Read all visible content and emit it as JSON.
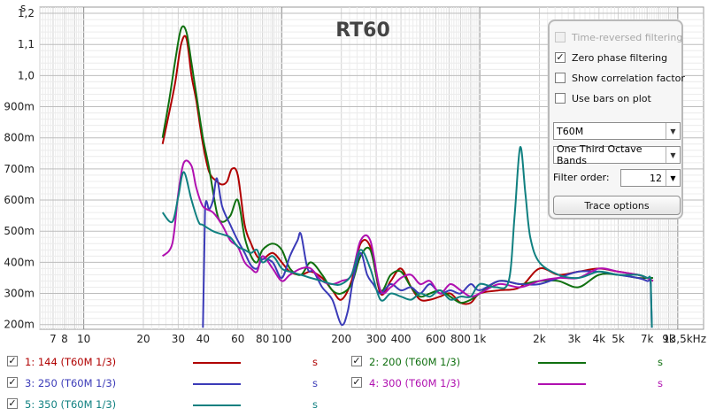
{
  "chart_data": {
    "type": "line",
    "title": "RT60",
    "ylabel": "s",
    "xlabel": "",
    "x_scale": "log",
    "xlim": [
      6,
      13500
    ],
    "ylim": [
      0.185,
      1.22
    ],
    "y_ticks": [
      {
        "v": 1.2,
        "label": "1,2"
      },
      {
        "v": 1.1,
        "label": "1,1"
      },
      {
        "v": 1.0,
        "label": "1,0"
      },
      {
        "v": 0.9,
        "label": "900m"
      },
      {
        "v": 0.8,
        "label": "800m"
      },
      {
        "v": 0.7,
        "label": "700m"
      },
      {
        "v": 0.6,
        "label": "600m"
      },
      {
        "v": 0.5,
        "label": "500m"
      },
      {
        "v": 0.4,
        "label": "400m"
      },
      {
        "v": 0.3,
        "label": "300m"
      },
      {
        "v": 0.2,
        "label": "200m"
      }
    ],
    "x_ticks": [
      {
        "v": 7,
        "label": "7"
      },
      {
        "v": 8,
        "label": "8"
      },
      {
        "v": 10,
        "label": "10"
      },
      {
        "v": 20,
        "label": "20"
      },
      {
        "v": 30,
        "label": "30"
      },
      {
        "v": 40,
        "label": "40"
      },
      {
        "v": 60,
        "label": "60"
      },
      {
        "v": 80,
        "label": "80"
      },
      {
        "v": 100,
        "label": "100"
      },
      {
        "v": 200,
        "label": "200"
      },
      {
        "v": 300,
        "label": "300"
      },
      {
        "v": 400,
        "label": "400"
      },
      {
        "v": 600,
        "label": "600"
      },
      {
        "v": 800,
        "label": "800"
      },
      {
        "v": 1000,
        "label": "1k"
      },
      {
        "v": 2000,
        "label": "2k"
      },
      {
        "v": 3000,
        "label": "3k"
      },
      {
        "v": 4000,
        "label": "4k"
      },
      {
        "v": 5000,
        "label": "5k"
      },
      {
        "v": 7000,
        "label": "7k"
      },
      {
        "v": 9000,
        "label": "9k"
      },
      {
        "v": 13500,
        "label": "13,5kHz"
      }
    ],
    "series": [
      {
        "name": "1: 144 (T60M 1/3)",
        "color": "#b00000",
        "x": [
          25,
          27,
          29,
          31,
          33,
          35,
          37,
          40,
          43,
          47,
          50,
          53,
          56,
          60,
          65,
          70,
          75,
          80,
          90,
          100,
          110,
          125,
          140,
          160,
          180,
          200,
          225,
          250,
          280,
          315,
          355,
          400,
          450,
          500,
          560,
          630,
          710,
          800,
          900,
          1000,
          1250,
          1600,
          2000,
          2500,
          3150,
          4000,
          5000,
          6300,
          7000,
          7500
        ],
        "y": [
          0.78,
          0.88,
          0.98,
          1.1,
          1.12,
          1.0,
          0.92,
          0.78,
          0.69,
          0.66,
          0.65,
          0.66,
          0.7,
          0.68,
          0.52,
          0.46,
          0.42,
          0.41,
          0.43,
          0.4,
          0.37,
          0.36,
          0.37,
          0.35,
          0.31,
          0.28,
          0.34,
          0.46,
          0.45,
          0.3,
          0.34,
          0.38,
          0.32,
          0.28,
          0.28,
          0.29,
          0.3,
          0.27,
          0.27,
          0.3,
          0.31,
          0.32,
          0.38,
          0.36,
          0.37,
          0.38,
          0.37,
          0.36,
          0.35,
          0.34
        ]
      },
      {
        "name": "2: 200 (T60M 1/3)",
        "color": "#107010",
        "x": [
          25,
          27,
          29,
          31,
          33,
          35,
          37,
          40,
          43,
          47,
          50,
          55,
          60,
          65,
          70,
          75,
          80,
          90,
          100,
          110,
          125,
          140,
          160,
          180,
          200,
          225,
          250,
          280,
          315,
          355,
          400,
          450,
          500,
          560,
          630,
          710,
          800,
          900,
          1000,
          1250,
          1600,
          2000,
          2500,
          3150,
          4000,
          5000,
          6300,
          7000,
          7500
        ],
        "y": [
          0.8,
          0.92,
          1.05,
          1.15,
          1.14,
          1.04,
          0.94,
          0.8,
          0.7,
          0.56,
          0.53,
          0.55,
          0.6,
          0.48,
          0.42,
          0.4,
          0.44,
          0.46,
          0.44,
          0.38,
          0.36,
          0.4,
          0.36,
          0.31,
          0.3,
          0.33,
          0.42,
          0.44,
          0.31,
          0.36,
          0.37,
          0.32,
          0.29,
          0.3,
          0.31,
          0.29,
          0.27,
          0.28,
          0.3,
          0.34,
          0.33,
          0.34,
          0.34,
          0.32,
          0.36,
          0.36,
          0.35,
          0.35,
          0.35
        ]
      },
      {
        "name": "3: 250 (T60M 1/3)",
        "color": "#3b3bb8",
        "x": [
          40,
          41,
          43,
          45,
          47,
          50,
          55,
          60,
          65,
          70,
          75,
          80,
          90,
          100,
          110,
          120,
          125,
          135,
          145,
          160,
          180,
          200,
          215,
          230,
          250,
          270,
          290,
          315,
          355,
          400,
          450,
          500,
          560,
          630,
          710,
          800,
          900,
          1000,
          1250,
          1600,
          2000,
          2500,
          3150,
          4000,
          5000,
          6300,
          7000,
          7300,
          7400
        ],
        "y": [
          0.19,
          0.57,
          0.57,
          0.6,
          0.67,
          0.58,
          0.52,
          0.47,
          0.43,
          0.39,
          0.38,
          0.41,
          0.4,
          0.35,
          0.42,
          0.47,
          0.49,
          0.38,
          0.37,
          0.32,
          0.28,
          0.2,
          0.24,
          0.35,
          0.43,
          0.36,
          0.33,
          0.3,
          0.33,
          0.31,
          0.32,
          0.3,
          0.33,
          0.3,
          0.31,
          0.3,
          0.33,
          0.31,
          0.34,
          0.33,
          0.33,
          0.35,
          0.37,
          0.37,
          0.36,
          0.35,
          0.34,
          0.33,
          0.19
        ]
      },
      {
        "name": "4: 300 (T60M 1/3)",
        "color": "#b010b0",
        "x": [
          25,
          28,
          30,
          32,
          35,
          37,
          40,
          45,
          50,
          55,
          60,
          65,
          70,
          75,
          80,
          90,
          100,
          110,
          125,
          140,
          160,
          180,
          200,
          225,
          250,
          280,
          315,
          355,
          400,
          450,
          500,
          560,
          630,
          710,
          800,
          900,
          1000,
          1250,
          1600,
          2000,
          2500,
          3150,
          4000,
          5000,
          6300,
          7000,
          7500
        ],
        "y": [
          0.42,
          0.46,
          0.62,
          0.72,
          0.71,
          0.64,
          0.58,
          0.56,
          0.52,
          0.47,
          0.45,
          0.4,
          0.38,
          0.37,
          0.42,
          0.38,
          0.34,
          0.36,
          0.38,
          0.38,
          0.34,
          0.33,
          0.34,
          0.36,
          0.47,
          0.47,
          0.31,
          0.32,
          0.35,
          0.36,
          0.33,
          0.34,
          0.3,
          0.33,
          0.31,
          0.29,
          0.3,
          0.33,
          0.32,
          0.34,
          0.35,
          0.35,
          0.38,
          0.37,
          0.36,
          0.35,
          0.34
        ]
      },
      {
        "name": "5: 350 (T60M 1/3)",
        "color": "#108080",
        "x": [
          25,
          28,
          30,
          32,
          35,
          38,
          40,
          45,
          50,
          55,
          60,
          65,
          70,
          75,
          80,
          90,
          100,
          110,
          125,
          140,
          160,
          180,
          200,
          225,
          250,
          280,
          315,
          355,
          400,
          450,
          500,
          560,
          630,
          710,
          800,
          900,
          1000,
          1200,
          1400,
          1500,
          1600,
          1700,
          1800,
          2000,
          2500,
          3150,
          4000,
          5000,
          6300,
          7000,
          7300,
          7400
        ],
        "y": [
          0.56,
          0.53,
          0.61,
          0.69,
          0.6,
          0.53,
          0.52,
          0.5,
          0.49,
          0.48,
          0.45,
          0.44,
          0.43,
          0.44,
          0.4,
          0.42,
          0.38,
          0.37,
          0.36,
          0.35,
          0.34,
          0.33,
          0.33,
          0.36,
          0.44,
          0.38,
          0.28,
          0.3,
          0.29,
          0.28,
          0.3,
          0.29,
          0.31,
          0.28,
          0.29,
          0.29,
          0.33,
          0.32,
          0.34,
          0.55,
          0.77,
          0.62,
          0.48,
          0.4,
          0.36,
          0.35,
          0.37,
          0.36,
          0.36,
          0.35,
          0.34,
          0.19
        ]
      }
    ]
  },
  "panel": {
    "options": [
      {
        "label": "Time-reversed filtering",
        "checked": false,
        "disabled": true
      },
      {
        "label": "Zero phase filtering",
        "checked": true,
        "disabled": false
      },
      {
        "label": "Show correlation factor",
        "checked": false,
        "disabled": false
      },
      {
        "label": "Use bars on plot",
        "checked": false,
        "disabled": false
      }
    ],
    "metric": "T60M",
    "bands": "One Third Octave Bands",
    "filter_order_label": "Filter order:",
    "filter_order": "12",
    "trace_button": "Trace options"
  },
  "legend": [
    {
      "label": "1: 144 (T60M 1/3)",
      "unit": "s",
      "color": "#b00000",
      "checked": true
    },
    {
      "label": "2: 200 (T60M 1/3)",
      "unit": "s",
      "color": "#107010",
      "checked": true
    },
    {
      "label": "3: 250 (T60M 1/3)",
      "unit": "s",
      "color": "#3b3bb8",
      "checked": true
    },
    {
      "label": "4: 300 (T60M 1/3)",
      "unit": "s",
      "color": "#b010b0",
      "checked": true
    },
    {
      "label": "5: 350 (T60M 1/3)",
      "unit": "s",
      "color": "#108080",
      "checked": true
    }
  ],
  "icons": {
    "checkbox_checked": "check-icon",
    "dropdown": "chevron-down-icon"
  }
}
